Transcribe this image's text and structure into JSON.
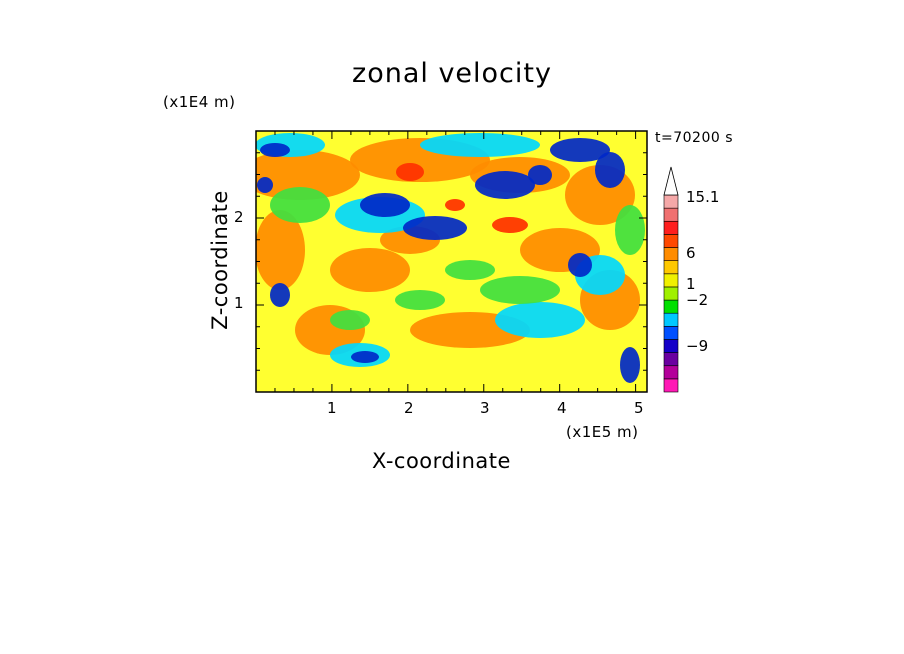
{
  "chart_data": {
    "type": "heatmap",
    "title": "zonal velocity",
    "xlabel": "X-coordinate",
    "ylabel": "Z-coordinate",
    "x_unit": "(x1E5 m)",
    "y_unit": "(x1E4 m)",
    "time_label": "t=70200 s",
    "xlim": [
      0,
      5.15
    ],
    "ylim": [
      0,
      3.0
    ],
    "x_ticks": [
      "1",
      "2",
      "3",
      "4",
      "5"
    ],
    "y_ticks": [
      "1",
      "2"
    ],
    "colorbar": {
      "labels": [
        "15.1",
        "6",
        "1",
        "−2",
        "−9"
      ],
      "levels": [
        {
          "color": "#ff19b5"
        },
        {
          "color": "#b3009a"
        },
        {
          "color": "#6a00a0"
        },
        {
          "color": "#1400c8"
        },
        {
          "color": "#0050ff"
        },
        {
          "color": "#00c8ff"
        },
        {
          "color": "#00e000"
        },
        {
          "color": "#a0f000"
        },
        {
          "color": "#f0f000"
        },
        {
          "color": "#ffc800"
        },
        {
          "color": "#ff8c00"
        },
        {
          "color": "#ff4800"
        },
        {
          "color": "#ff1e1e"
        },
        {
          "color": "#f07070"
        },
        {
          "color": "#f5a8a8"
        },
        {
          "color": "#ffffff"
        }
      ]
    },
    "field_description_colors": {
      "background": "#ffff30",
      "warm": "#ff8c00",
      "hot": "#ff3000",
      "cold": "#0028c8",
      "cyan": "#00d8ff",
      "green": "#40e040"
    }
  }
}
